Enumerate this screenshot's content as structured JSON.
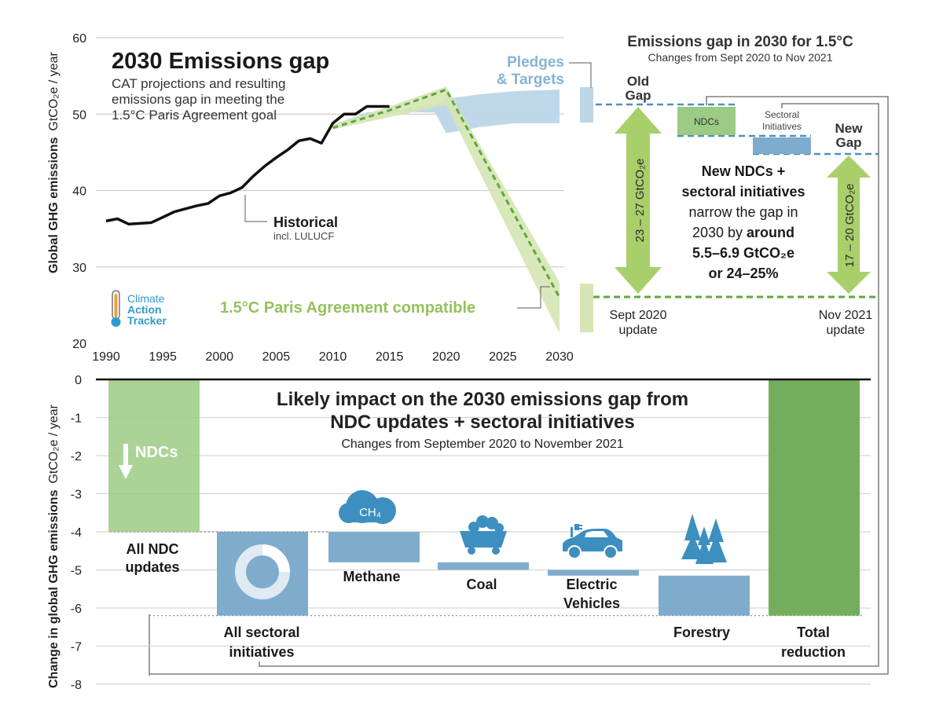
{
  "colors": {
    "historical": "#111111",
    "pledges": "#bcd6e8",
    "paris_band": "#d5e6b4",
    "paris_dash": "#5fa83c",
    "gap_arrow": "#a9cf6a",
    "blue_dash": "#4f8fbf",
    "ndc_bar_top": "#9ccb84",
    "bar_blue": "#7faccd",
    "total_bar": "#74ae5c",
    "pledge_text": "#86b4d6",
    "paris_text": "#93c25c",
    "cat_blue": "#2e9bd0"
  },
  "top": {
    "title": "2030 Emissions gap",
    "subtitle_lines": [
      "CAT projections and resulting",
      "emissions gap in meeting the",
      "1.5°C Paris Agreement goal"
    ],
    "y_label": "Global GHG emissions",
    "y_unit": "GtCO₂e / year",
    "historical_label": "Historical",
    "historical_sub": "incl. LULUCF",
    "pledges_label_1": "Pledges",
    "pledges_label_2": "& Targets",
    "paris_label": "1.5°C Paris Agreement compatible",
    "logo": [
      "Climate",
      "Action",
      "Tracker"
    ]
  },
  "chart_data": [
    {
      "type": "line",
      "title": "2030 Emissions gap",
      "xlabel": "",
      "ylabel": "Global GHG emissions GtCO₂e / year",
      "xlim": [
        1990,
        2030
      ],
      "ylim": [
        20,
        60
      ],
      "x_ticks": [
        1990,
        1995,
        2000,
        2005,
        2010,
        2015,
        2020,
        2025,
        2030
      ],
      "y_ticks": [
        20,
        30,
        40,
        50,
        60
      ],
      "grid": true,
      "series": [
        {
          "name": "Historical",
          "x": [
            1990,
            1991,
            1992,
            1993,
            1994,
            1995,
            1996,
            1997,
            1998,
            1999,
            2000,
            2001,
            2002,
            2003,
            2004,
            2005,
            2006,
            2007,
            2008,
            2009,
            2010,
            2011,
            2012,
            2013,
            2014,
            2015
          ],
          "y": [
            36.0,
            36.3,
            35.6,
            35.7,
            35.8,
            36.5,
            37.2,
            37.6,
            38.0,
            38.3,
            39.3,
            39.7,
            40.4,
            41.9,
            43.2,
            44.3,
            45.3,
            46.5,
            46.8,
            46.2,
            48.8,
            50.0,
            50.0,
            51.0,
            51.0,
            51.0
          ]
        },
        {
          "name": "Pledges & Targets",
          "x": [
            2010,
            2013,
            2016,
            2019,
            2020,
            2023,
            2026,
            2030
          ],
          "y_low": [
            48.6,
            49.6,
            50.3,
            50.2,
            47.5,
            48.3,
            48.8,
            48.8
          ],
          "y_high": [
            48.6,
            50.2,
            50.6,
            51.3,
            52.0,
            52.6,
            53.0,
            53.2
          ]
        },
        {
          "name": "1.5°C Paris Agreement compatible",
          "x": [
            2010,
            2015,
            2020,
            2030
          ],
          "y_low": [
            48.0,
            49.6,
            51.2,
            21.3
          ],
          "y_high": [
            48.6,
            51.0,
            53.6,
            28.0
          ],
          "y_mid": [
            48.2,
            50.5,
            53.2,
            26.0
          ]
        }
      ]
    },
    {
      "type": "bar",
      "title": "Likely impact on the 2030 emissions gap from NDC updates + sectoral initiatives",
      "subtitle": "Changes from September 2020 to November 2021",
      "ylabel": "Change in global GHG emissions GtCO₂e / year",
      "ylim": [
        -8,
        0
      ],
      "y_ticks": [
        0,
        -1,
        -2,
        -3,
        -4,
        -5,
        -6,
        -7,
        -8
      ],
      "categories": [
        "All NDC updates",
        "All sectoral initiatives",
        "Methane",
        "Coal",
        "Electric Vehicles",
        "Forestry",
        "Total reduction"
      ],
      "bars": [
        {
          "name": "All NDC updates",
          "start": 0,
          "end": -4.0
        },
        {
          "name": "All sectoral initiatives",
          "start": -4.0,
          "end": -6.2
        },
        {
          "name": "Methane",
          "start": -4.0,
          "end": -4.8
        },
        {
          "name": "Coal",
          "start": -4.8,
          "end": -5.0
        },
        {
          "name": "Electric Vehicles",
          "start": -5.0,
          "end": -5.15
        },
        {
          "name": "Forestry",
          "start": -5.15,
          "end": -6.2
        },
        {
          "name": "Total reduction",
          "start": 0,
          "end": -6.2
        }
      ]
    }
  ],
  "gap_panel": {
    "title": "Emissions gap in 2030 for 1.5°C",
    "subtitle": "Changes from Sept 2020 to Nov 2021",
    "old_gap_1": "Old",
    "old_gap_2": "Gap",
    "new_gap_1": "New",
    "new_gap_2": "Gap",
    "ndcs_box": "NDCs",
    "sectoral_1": "Sectoral",
    "sectoral_2": "Initiatives",
    "old_gap_value": "23 – 27 GtCO₂e",
    "new_gap_value": "17 – 20 GtCO₂e",
    "sept_1": "Sept 2020",
    "sept_2": "update",
    "nov_1": "Nov 2021",
    "nov_2": "update",
    "text_1": "New NDCs +",
    "text_2": "sectoral initiatives",
    "text_3": "narrow the gap in",
    "text_4a": "2030 by ",
    "text_4b": "around",
    "text_5": "5.5–6.9 GtCO₂e",
    "text_6": "or 24–25%"
  },
  "bottom": {
    "title_1": "Likely impact on the 2030 emissions gap from",
    "title_2": "NDC updates + sectoral initiatives",
    "subtitle": "Changes from September 2020 to November 2021",
    "y_label": "Change in global GHG emissions",
    "y_unit": "GtCO₂e / year",
    "ndcs_tag": "NDCs",
    "ch4": "CH₄",
    "labels": {
      "ndc_1": "All NDC",
      "ndc_2": "updates",
      "sect_1": "All sectoral",
      "sect_2": "initiatives",
      "methane": "Methane",
      "coal": "Coal",
      "ev_1": "Electric",
      "ev_2": "Vehicles",
      "forestry": "Forestry",
      "total_1": "Total",
      "total_2": "reduction"
    }
  }
}
